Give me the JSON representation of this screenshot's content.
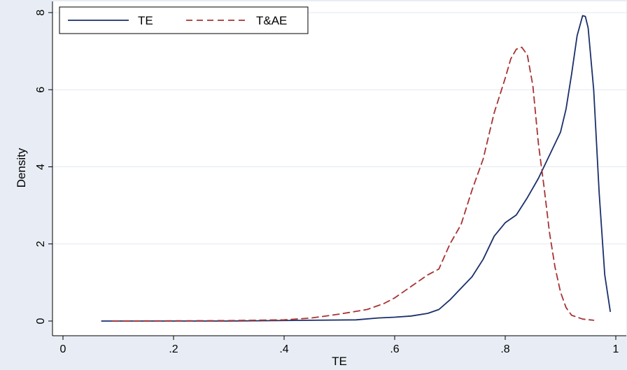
{
  "chart_data": {
    "type": "line",
    "xlabel": "TE",
    "ylabel": "Density",
    "xlim": [
      0,
      1
    ],
    "ylim": [
      0,
      8
    ],
    "x_ticks": [
      {
        "value": 0,
        "label": "0"
      },
      {
        "value": 0.2,
        "label": ".2"
      },
      {
        "value": 0.4,
        "label": ".4"
      },
      {
        "value": 0.6,
        "label": ".6"
      },
      {
        "value": 0.8,
        "label": ".8"
      },
      {
        "value": 1,
        "label": "1"
      }
    ],
    "y_ticks": [
      {
        "value": 0,
        "label": "0"
      },
      {
        "value": 2,
        "label": "2"
      },
      {
        "value": 4,
        "label": "4"
      },
      {
        "value": 6,
        "label": "6"
      },
      {
        "value": 8,
        "label": "8"
      }
    ],
    "grid": true,
    "legend_position": "top-left",
    "series": [
      {
        "name": "TE",
        "color": "#1a2f6b",
        "style": "solid",
        "x": [
          0.07,
          0.3,
          0.45,
          0.53,
          0.57,
          0.6,
          0.63,
          0.66,
          0.68,
          0.7,
          0.72,
          0.74,
          0.76,
          0.78,
          0.8,
          0.82,
          0.84,
          0.86,
          0.88,
          0.9,
          0.91,
          0.92,
          0.93,
          0.94,
          0.945,
          0.95,
          0.96,
          0.97,
          0.98,
          0.99
        ],
        "y": [
          0.0,
          0.0,
          0.02,
          0.03,
          0.08,
          0.1,
          0.13,
          0.2,
          0.3,
          0.55,
          0.85,
          1.15,
          1.6,
          2.2,
          2.55,
          2.75,
          3.2,
          3.7,
          4.3,
          4.9,
          5.5,
          6.4,
          7.4,
          7.92,
          7.9,
          7.6,
          6.0,
          3.3,
          1.2,
          0.25
        ]
      },
      {
        "name": "T&AE",
        "color": "#a83232",
        "style": "dashed",
        "x": [
          0.09,
          0.3,
          0.4,
          0.45,
          0.5,
          0.55,
          0.58,
          0.6,
          0.63,
          0.66,
          0.68,
          0.7,
          0.72,
          0.74,
          0.76,
          0.78,
          0.8,
          0.81,
          0.82,
          0.83,
          0.84,
          0.85,
          0.86,
          0.87,
          0.88,
          0.89,
          0.9,
          0.91,
          0.92,
          0.94,
          0.96
        ],
        "y": [
          0.0,
          0.01,
          0.03,
          0.08,
          0.18,
          0.3,
          0.45,
          0.6,
          0.9,
          1.2,
          1.35,
          2.0,
          2.5,
          3.4,
          4.2,
          5.4,
          6.3,
          6.8,
          7.05,
          7.1,
          6.9,
          6.1,
          4.6,
          3.5,
          2.3,
          1.4,
          0.75,
          0.35,
          0.15,
          0.05,
          0.02
        ]
      }
    ]
  }
}
